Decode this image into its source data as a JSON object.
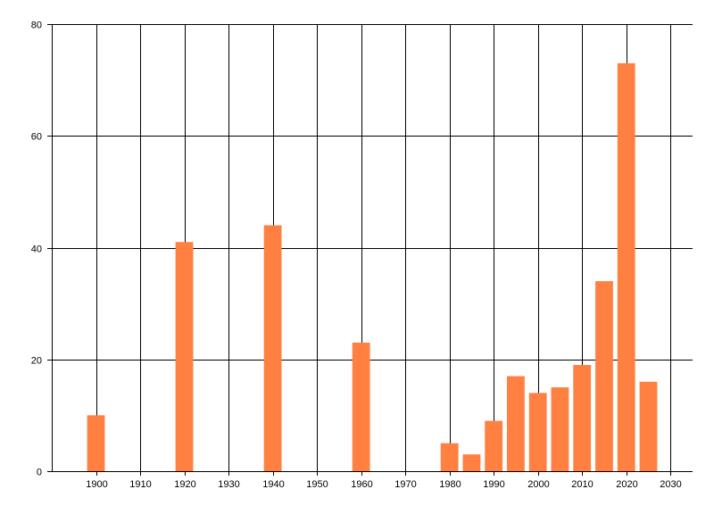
{
  "chart_data": {
    "type": "bar",
    "title": "",
    "xlabel": "",
    "ylabel": "",
    "x": [
      1900,
      1920,
      1940,
      1960,
      1980,
      1985,
      1990,
      1995,
      2000,
      2005,
      2010,
      2015,
      2020,
      2025
    ],
    "values": [
      10,
      41,
      44,
      23,
      5,
      3,
      9,
      17,
      14,
      15,
      19,
      34,
      73,
      16
    ],
    "xlim": [
      1890,
      2035
    ],
    "ylim": [
      0,
      80
    ],
    "x_ticks": [
      1900,
      1910,
      1920,
      1930,
      1940,
      1950,
      1960,
      1970,
      1980,
      1990,
      2000,
      2010,
      2020,
      2030
    ],
    "x_tick_labels": [
      "1900",
      "1910",
      "1920",
      "1930",
      "1940",
      "1950",
      "1960",
      "1970",
      "1980",
      "1990",
      "2000",
      "2010",
      "2020",
      "2030"
    ],
    "y_ticks": [
      0,
      20,
      40,
      60,
      80
    ],
    "y_tick_labels": [
      "0",
      "20",
      "40",
      "60",
      "80"
    ],
    "grid": true,
    "bar_color": "#ff8040",
    "grid_color": "#000000"
  }
}
